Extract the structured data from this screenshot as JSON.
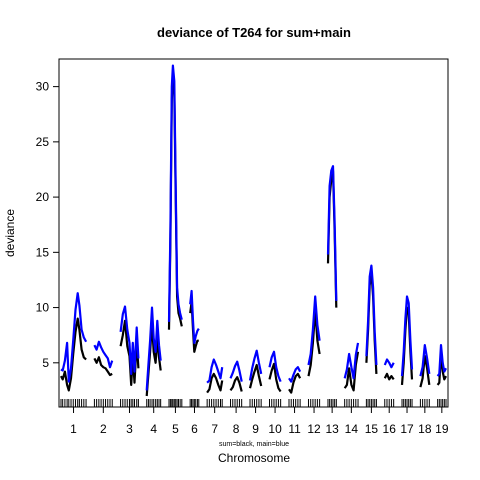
{
  "chart_data": {
    "type": "line",
    "title": "deviance of T264 for sum+main",
    "xlabel": "Chromosome",
    "subtitle": "sum=black, main=blue",
    "ylabel": "deviance",
    "ylim": [
      1.0,
      32.5
    ],
    "yticks": [
      5,
      10,
      15,
      20,
      25,
      30
    ],
    "grid": false,
    "legend": "none",
    "colors": {
      "sum": "#000000",
      "main": "#0000ff"
    },
    "chromosomes": [
      {
        "label": "1",
        "sum": [
          [
            0,
            3.8
          ],
          [
            0.6,
            3.5
          ],
          [
            1.4,
            4.2
          ],
          [
            2.2,
            3.0
          ],
          [
            2.8,
            2.5
          ],
          [
            3.6,
            3.6
          ],
          [
            4.4,
            5.8
          ],
          [
            5.2,
            7.8
          ],
          [
            6,
            9.0
          ],
          [
            6.6,
            8.0
          ],
          [
            7.4,
            6.2
          ],
          [
            8.2,
            5.5
          ],
          [
            9,
            5.3
          ]
        ],
        "main": [
          [
            0,
            4.4
          ],
          [
            0.6,
            4.3
          ],
          [
            1.4,
            5.2
          ],
          [
            2.2,
            6.8
          ],
          [
            2.8,
            3.3
          ],
          [
            3.6,
            4.5
          ],
          [
            4.4,
            7.0
          ],
          [
            5.2,
            9.8
          ],
          [
            6,
            11.3
          ],
          [
            6.6,
            10.2
          ],
          [
            7.4,
            8.0
          ],
          [
            8.2,
            7.3
          ],
          [
            9,
            6.9
          ]
        ]
      },
      {
        "label": "2",
        "sum": [
          [
            0,
            5.4
          ],
          [
            0.8,
            5.0
          ],
          [
            1.6,
            5.5
          ],
          [
            2.4,
            4.8
          ],
          [
            3.2,
            4.6
          ],
          [
            4,
            4.5
          ],
          [
            4.8,
            4.2
          ],
          [
            5.6,
            3.9
          ],
          [
            6.4,
            4.0
          ]
        ],
        "main": [
          [
            0,
            6.6
          ],
          [
            0.8,
            6.2
          ],
          [
            1.6,
            6.9
          ],
          [
            2.4,
            6.4
          ],
          [
            3.2,
            6.0
          ],
          [
            4,
            5.7
          ],
          [
            4.8,
            5.4
          ],
          [
            5.6,
            4.6
          ],
          [
            6.4,
            5.2
          ]
        ]
      },
      {
        "label": "3",
        "sum": [
          [
            0,
            6.5
          ],
          [
            0.8,
            7.5
          ],
          [
            1.6,
            8.8
          ],
          [
            2.4,
            6.5
          ],
          [
            3.2,
            5.6
          ],
          [
            3.8,
            3.0
          ],
          [
            4.4,
            5.6
          ],
          [
            5,
            3.2
          ],
          [
            5.8,
            7.0
          ],
          [
            6.4,
            4.5
          ]
        ],
        "main": [
          [
            0,
            7.8
          ],
          [
            0.8,
            9.4
          ],
          [
            1.6,
            10.1
          ],
          [
            2.4,
            8.0
          ],
          [
            3.2,
            6.8
          ],
          [
            3.8,
            4.0
          ],
          [
            4.4,
            6.8
          ],
          [
            5,
            4.2
          ],
          [
            5.8,
            8.2
          ],
          [
            6.4,
            5.4
          ]
        ]
      },
      {
        "label": "4",
        "sum": [
          [
            0,
            2.0
          ],
          [
            0.6,
            4.0
          ],
          [
            1.2,
            6.0
          ],
          [
            1.9,
            8.6
          ],
          [
            2.5,
            6.0
          ],
          [
            3.2,
            5.0
          ],
          [
            3.8,
            7.3
          ],
          [
            4.4,
            5.5
          ],
          [
            5,
            4.3
          ]
        ],
        "main": [
          [
            0,
            2.5
          ],
          [
            0.6,
            4.8
          ],
          [
            1.2,
            7.0
          ],
          [
            1.9,
            10.0
          ],
          [
            2.5,
            7.2
          ],
          [
            3.2,
            6.0
          ],
          [
            3.8,
            8.8
          ],
          [
            4.4,
            6.6
          ],
          [
            5,
            5.2
          ]
        ]
      },
      {
        "label": "5",
        "sum": [
          [
            0,
            8.0
          ],
          [
            0.5,
            16.0
          ],
          [
            1,
            28.8
          ],
          [
            1.4,
            31.0
          ],
          [
            1.9,
            29.5
          ],
          [
            2.4,
            20.0
          ],
          [
            2.9,
            11.0
          ],
          [
            3.4,
            9.5
          ],
          [
            4,
            9.0
          ],
          [
            4.6,
            8.3
          ]
        ],
        "main": [
          [
            0,
            8.7
          ],
          [
            0.5,
            17.0
          ],
          [
            1,
            30.0
          ],
          [
            1.4,
            31.9
          ],
          [
            1.9,
            30.5
          ],
          [
            2.4,
            21.0
          ],
          [
            2.9,
            11.8
          ],
          [
            3.4,
            10.3
          ],
          [
            4,
            9.5
          ],
          [
            4.6,
            8.9
          ]
        ]
      },
      {
        "label": "6",
        "sum": [
          [
            0,
            9.5
          ],
          [
            0.5,
            10.5
          ],
          [
            1,
            8.0
          ],
          [
            1.5,
            6.0
          ],
          [
            2,
            6.5
          ],
          [
            2.6,
            7.0
          ],
          [
            3.1,
            7.0
          ]
        ],
        "main": [
          [
            0,
            10.3
          ],
          [
            0.5,
            11.5
          ],
          [
            1,
            8.8
          ],
          [
            1.5,
            6.8
          ],
          [
            2,
            7.4
          ],
          [
            2.6,
            7.9
          ],
          [
            3.1,
            8.1
          ]
        ]
      },
      {
        "label": "7",
        "sum": [
          [
            0,
            2.3
          ],
          [
            0.8,
            2.6
          ],
          [
            1.6,
            3.6
          ],
          [
            2.4,
            4.0
          ],
          [
            3.2,
            3.6
          ],
          [
            4,
            3.0
          ],
          [
            4.8,
            2.5
          ],
          [
            5.4,
            3.4
          ]
        ],
        "main": [
          [
            0,
            3.2
          ],
          [
            0.8,
            3.4
          ],
          [
            1.6,
            4.6
          ],
          [
            2.4,
            5.3
          ],
          [
            3.2,
            4.8
          ],
          [
            4,
            4.2
          ],
          [
            4.8,
            3.6
          ],
          [
            5.4,
            4.6
          ]
        ]
      },
      {
        "label": "8",
        "sum": [
          [
            0,
            2.5
          ],
          [
            0.8,
            2.8
          ],
          [
            1.6,
            3.4
          ],
          [
            2.4,
            3.7
          ],
          [
            3.2,
            3.2
          ],
          [
            4,
            2.4
          ]
        ],
        "main": [
          [
            0,
            3.6
          ],
          [
            0.8,
            4.1
          ],
          [
            1.6,
            4.7
          ],
          [
            2.4,
            5.1
          ],
          [
            3.2,
            4.3
          ],
          [
            4,
            3.3
          ]
        ]
      },
      {
        "label": "9",
        "sum": [
          [
            0,
            2.7
          ],
          [
            0.8,
            3.5
          ],
          [
            1.6,
            4.2
          ],
          [
            2.4,
            4.8
          ],
          [
            3.2,
            3.8
          ],
          [
            4,
            2.9
          ]
        ],
        "main": [
          [
            0,
            3.4
          ],
          [
            0.8,
            4.5
          ],
          [
            1.6,
            5.4
          ],
          [
            2.4,
            6.1
          ],
          [
            3.2,
            5.0
          ],
          [
            4,
            4.0
          ]
        ]
      },
      {
        "label": "10",
        "sum": [
          [
            0,
            3.5
          ],
          [
            0.8,
            4.3
          ],
          [
            1.6,
            4.9
          ],
          [
            2.4,
            3.5
          ],
          [
            3.2,
            2.7
          ],
          [
            4,
            2.4
          ]
        ],
        "main": [
          [
            0,
            4.6
          ],
          [
            0.8,
            5.5
          ],
          [
            1.6,
            6.0
          ],
          [
            2.4,
            4.6
          ],
          [
            3.2,
            3.8
          ],
          [
            4,
            3.3
          ]
        ]
      },
      {
        "label": "11",
        "sum": [
          [
            0,
            2.6
          ],
          [
            0.8,
            2.3
          ],
          [
            1.6,
            3.2
          ],
          [
            2.4,
            3.8
          ],
          [
            3.2,
            4.0
          ],
          [
            4,
            3.6
          ]
        ],
        "main": [
          [
            0,
            3.6
          ],
          [
            0.8,
            3.3
          ],
          [
            1.6,
            3.9
          ],
          [
            2.4,
            4.4
          ],
          [
            3.2,
            4.6
          ],
          [
            4,
            4.2
          ]
        ]
      },
      {
        "label": "12",
        "sum": [
          [
            0,
            3.8
          ],
          [
            0.8,
            4.8
          ],
          [
            1.6,
            6.8
          ],
          [
            2.4,
            9.8
          ],
          [
            3.2,
            7.0
          ],
          [
            4,
            5.8
          ]
        ],
        "main": [
          [
            0,
            4.8
          ],
          [
            0.8,
            5.8
          ],
          [
            1.6,
            8.0
          ],
          [
            2.4,
            11.0
          ],
          [
            3.2,
            8.4
          ],
          [
            4,
            7.0
          ]
        ]
      },
      {
        "label": "13",
        "sum": [
          [
            0,
            14.0
          ],
          [
            0.6,
            20.0
          ],
          [
            1.2,
            21.6
          ],
          [
            1.8,
            22.4
          ],
          [
            2.4,
            17.0
          ],
          [
            3,
            10.0
          ]
        ],
        "main": [
          [
            0,
            14.8
          ],
          [
            0.6,
            21.0
          ],
          [
            1.2,
            22.4
          ],
          [
            1.8,
            22.8
          ],
          [
            2.4,
            17.8
          ],
          [
            3,
            10.6
          ]
        ]
      },
      {
        "label": "14",
        "sum": [
          [
            0,
            2.7
          ],
          [
            0.8,
            3.0
          ],
          [
            1.6,
            4.5
          ],
          [
            2.4,
            3.0
          ],
          [
            3.2,
            2.5
          ],
          [
            4,
            4.8
          ],
          [
            4.8,
            6.0
          ]
        ],
        "main": [
          [
            0,
            3.6
          ],
          [
            0.8,
            4.4
          ],
          [
            1.6,
            5.8
          ],
          [
            2.4,
            4.6
          ],
          [
            3.2,
            3.6
          ],
          [
            4,
            5.7
          ],
          [
            4.8,
            6.8
          ]
        ]
      },
      {
        "label": "15",
        "sum": [
          [
            0,
            5.0
          ],
          [
            0.6,
            8.0
          ],
          [
            1.2,
            12.0
          ],
          [
            1.8,
            13.2
          ],
          [
            2.4,
            11.0
          ],
          [
            3,
            7.0
          ],
          [
            3.6,
            4.0
          ]
        ],
        "main": [
          [
            0,
            5.6
          ],
          [
            0.6,
            8.8
          ],
          [
            1.2,
            12.8
          ],
          [
            1.8,
            13.8
          ],
          [
            2.4,
            11.8
          ],
          [
            3,
            7.8
          ],
          [
            3.6,
            4.8
          ]
        ]
      },
      {
        "label": "16",
        "sum": [
          [
            0,
            3.6
          ],
          [
            0.8,
            4.0
          ],
          [
            1.6,
            3.5
          ],
          [
            2.4,
            3.8
          ],
          [
            3.2,
            3.5
          ]
        ],
        "main": [
          [
            0,
            4.8
          ],
          [
            0.8,
            5.3
          ],
          [
            1.6,
            5.0
          ],
          [
            2.4,
            4.6
          ],
          [
            3.2,
            5.0
          ]
        ]
      },
      {
        "label": "17",
        "sum": [
          [
            0,
            3.0
          ],
          [
            0.6,
            5.0
          ],
          [
            1.2,
            8.0
          ],
          [
            1.8,
            10.0
          ],
          [
            2.4,
            9.5
          ],
          [
            3,
            6.0
          ],
          [
            3.6,
            3.5
          ]
        ],
        "main": [
          [
            0,
            3.8
          ],
          [
            0.6,
            6.0
          ],
          [
            1.2,
            9.0
          ],
          [
            1.8,
            11.0
          ],
          [
            2.4,
            10.4
          ],
          [
            3,
            7.0
          ],
          [
            3.6,
            4.4
          ]
        ]
      },
      {
        "label": "18",
        "sum": [
          [
            0,
            2.8
          ],
          [
            0.8,
            3.6
          ],
          [
            1.6,
            5.6
          ],
          [
            2.4,
            4.5
          ],
          [
            3.2,
            3.0
          ]
        ],
        "main": [
          [
            0,
            3.8
          ],
          [
            0.8,
            4.6
          ],
          [
            1.6,
            6.6
          ],
          [
            2.4,
            5.4
          ],
          [
            3.2,
            4.0
          ]
        ]
      },
      {
        "label": "19",
        "sum": [
          [
            0,
            3.0
          ],
          [
            0.6,
            3.2
          ],
          [
            1.2,
            5.8
          ],
          [
            1.8,
            4.2
          ],
          [
            2.4,
            3.5
          ],
          [
            3,
            3.8
          ]
        ],
        "main": [
          [
            0,
            3.8
          ],
          [
            0.6,
            4.0
          ],
          [
            1.2,
            6.6
          ],
          [
            1.8,
            5.0
          ],
          [
            2.4,
            4.2
          ],
          [
            3,
            4.5
          ]
        ]
      }
    ]
  }
}
